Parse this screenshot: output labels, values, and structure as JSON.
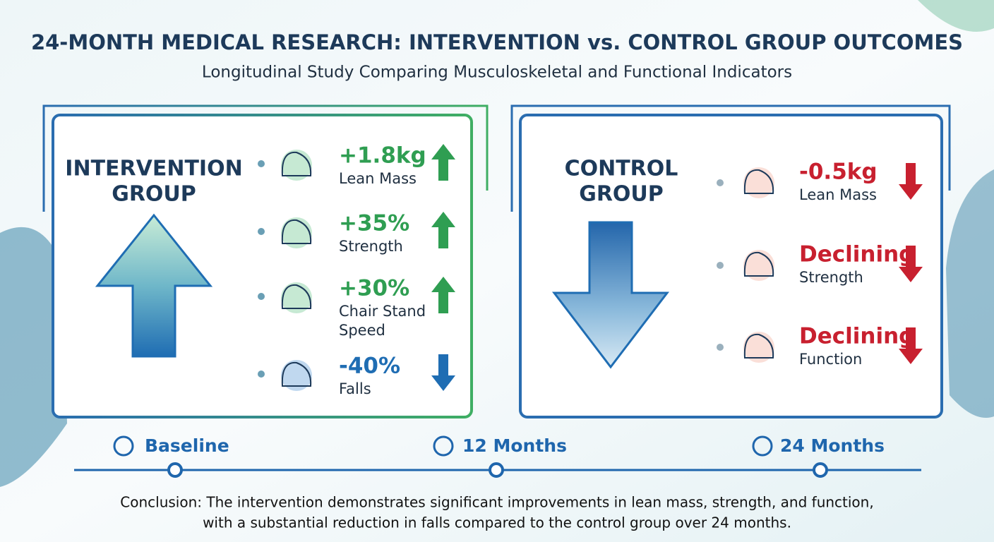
{
  "header": {
    "title": "24-MONTH MEDICAL RESEARCH: INTERVENTION vs. CONTROL GROUP OUTCOMES",
    "subtitle": "Longitudinal Study Comparing Musculoskeletal and Functional Indicators"
  },
  "panels": [
    {
      "title_lines": [
        "INTERVENTION",
        "GROUP"
      ],
      "items": [
        {
          "value": "+1.8kg",
          "label_lines": [
            "Lean Mass"
          ]
        },
        {
          "value": "+35%",
          "label_lines": [
            "Strength"
          ]
        },
        {
          "value": "+30%",
          "label_lines": [
            "Chair Stand",
            "Speed"
          ]
        },
        {
          "value": "-40%",
          "label_lines": [
            "Falls"
          ]
        }
      ]
    },
    {
      "title_lines": [
        "CONTROL",
        "GROUP"
      ],
      "items": [
        {
          "value": "-0.5kg",
          "label_lines": [
            "Lean Mass"
          ]
        },
        {
          "value": "Declining",
          "label_lines": [
            "Strength"
          ]
        },
        {
          "value": "Declining",
          "label_lines": [
            "Function"
          ]
        }
      ]
    }
  ],
  "timeline": [
    "Baseline",
    "12 Months",
    "24 Months"
  ],
  "conclusion": [
    "Conclusion: The intervention demonstrates significant improvements in lean mass, strength, and function,",
    "with a substantial reduction in falls compared to the control group over 24 months."
  ]
}
